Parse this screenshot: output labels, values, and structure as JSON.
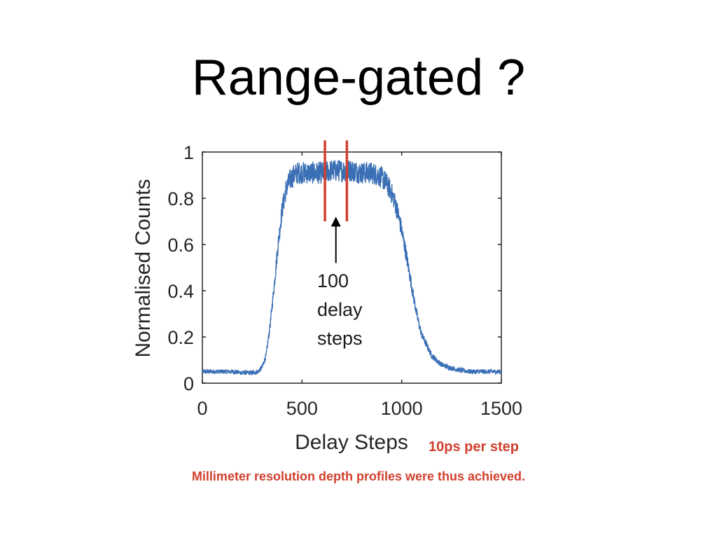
{
  "slide": {
    "title": "Range-gated ?",
    "step_note": "10ps per step",
    "caption": "Millimeter resolution depth profiles were thus achieved.",
    "note_color": "#d0402e"
  },
  "chart_data": {
    "type": "line",
    "title": "",
    "xlabel": "Delay Steps",
    "ylabel": "Normalised Counts",
    "xlim": [
      0,
      1500
    ],
    "ylim": [
      0,
      1
    ],
    "x_ticks": [
      0,
      500,
      1000,
      1500
    ],
    "x_tick_labels": [
      "0",
      "500",
      "1000",
      "1500"
    ],
    "y_ticks": [
      0,
      0.2,
      0.4,
      0.6,
      0.8,
      1
    ],
    "y_tick_labels": [
      "0",
      "0.2",
      "0.4",
      "0.6",
      "0.8",
      "1"
    ],
    "grid": false,
    "series": [
      {
        "color": "#3a6fb5",
        "x": [
          0,
          50,
          100,
          150,
          200,
          250,
          280,
          300,
          320,
          340,
          360,
          380,
          400,
          420,
          440,
          460,
          480,
          500,
          550,
          600,
          650,
          700,
          750,
          800,
          850,
          880,
          900,
          920,
          940,
          960,
          980,
          1000,
          1020,
          1040,
          1060,
          1080,
          1100,
          1150,
          1200,
          1250,
          1300,
          1350,
          1400,
          1450,
          1500
        ],
        "y": [
          0.05,
          0.05,
          0.05,
          0.05,
          0.045,
          0.045,
          0.05,
          0.07,
          0.12,
          0.25,
          0.42,
          0.6,
          0.75,
          0.84,
          0.88,
          0.9,
          0.91,
          0.91,
          0.91,
          0.91,
          0.92,
          0.92,
          0.92,
          0.91,
          0.91,
          0.9,
          0.89,
          0.87,
          0.84,
          0.8,
          0.74,
          0.66,
          0.57,
          0.47,
          0.37,
          0.28,
          0.21,
          0.12,
          0.08,
          0.065,
          0.055,
          0.05,
          0.05,
          0.05,
          0.05
        ]
      }
    ],
    "gate_markers": {
      "color": "#d0402e",
      "x": [
        615,
        725
      ],
      "y_range": [
        0.7,
        1.05
      ]
    },
    "annotation": {
      "lines": [
        "100",
        "delay",
        "steps"
      ],
      "arrow_x": 670,
      "arrow_tip_y": 0.72,
      "arrow_tail_y": 0.52
    }
  }
}
